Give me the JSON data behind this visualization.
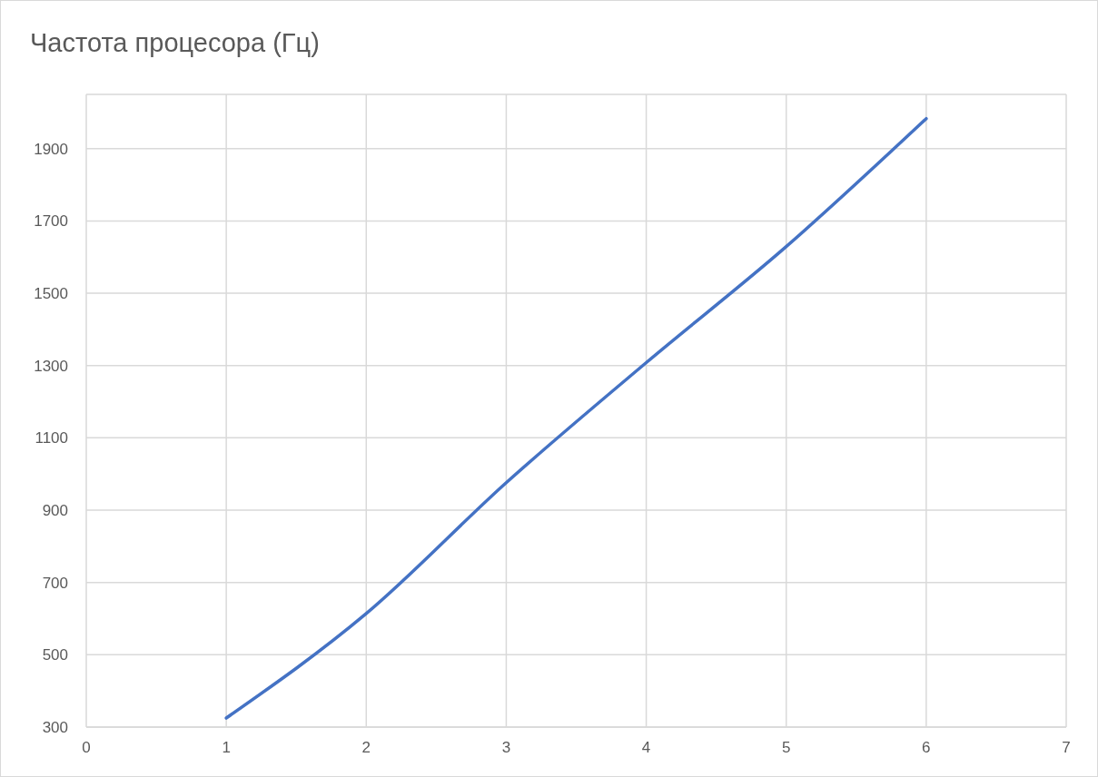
{
  "chart_data": {
    "type": "line",
    "title": "Частота процесора (Гц)",
    "x": [
      1,
      2,
      3,
      4,
      5,
      6
    ],
    "series": [
      {
        "color": "#4472c4",
        "values": [
          325,
          614,
          976,
          1308,
          1629,
          1983
        ]
      }
    ],
    "xlim": [
      0,
      7
    ],
    "xticks": [
      0,
      1,
      2,
      3,
      4,
      5,
      6,
      7
    ],
    "ylim": [
      300,
      2050
    ],
    "yticks": [
      300,
      500,
      700,
      900,
      1100,
      1300,
      1500,
      1700,
      1900
    ],
    "grid": true,
    "legend": false,
    "marker": "none",
    "line_style": "solid"
  }
}
